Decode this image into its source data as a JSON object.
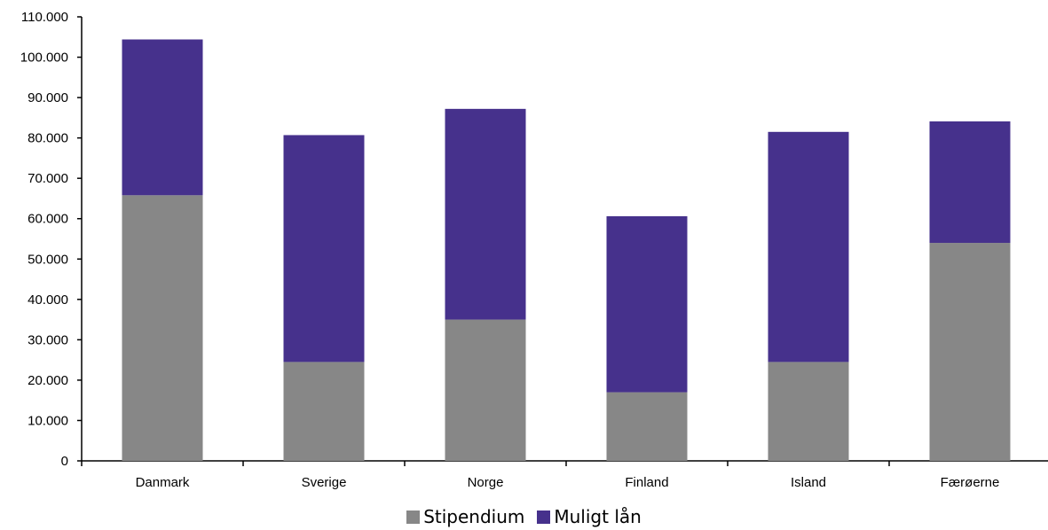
{
  "chart_data": {
    "type": "bar",
    "stacked": true,
    "categories": [
      "Danmark",
      "Sverige",
      "Norge",
      "Finland",
      "Island",
      "Færøerne"
    ],
    "series": [
      {
        "name": "Stipendium",
        "color": "#878787",
        "values": [
          65800,
          24500,
          35000,
          17000,
          24500,
          54000
        ]
      },
      {
        "name": "Muligt lån",
        "color": "#46318c",
        "values": [
          38600,
          56200,
          52200,
          43600,
          57000,
          30100
        ]
      }
    ],
    "ylim": [
      0,
      110000
    ],
    "yticks": [
      "0",
      "10.000",
      "20.000",
      "30.000",
      "40.000",
      "50.000",
      "60.000",
      "70.000",
      "80.000",
      "90.000",
      "100.000",
      "110.000"
    ],
    "grid": false,
    "legend_position": "bottom"
  }
}
